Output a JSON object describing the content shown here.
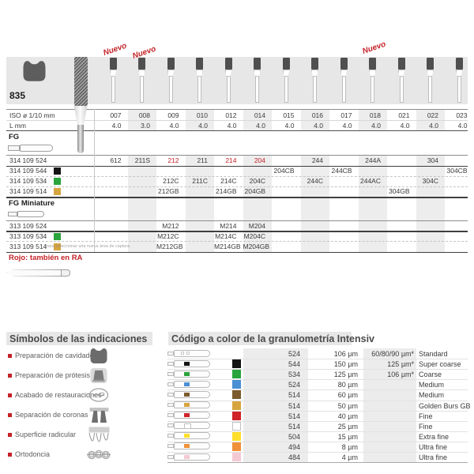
{
  "product": {
    "model": "835",
    "new_label": "Nuevo",
    "new_columns": [
      0,
      1,
      9
    ],
    "columns": [
      "007",
      "008",
      "009",
      "010",
      "012",
      "014",
      "015",
      "016",
      "017",
      "018",
      "021",
      "022",
      "023"
    ],
    "shaded_column_indices": [
      1,
      3,
      5,
      7,
      9,
      11
    ],
    "iso_label": "ISO ø 1/10 mm",
    "l_label": "L mm",
    "l_values": [
      "4.0",
      "3.0",
      "4.0",
      "4.0",
      "4.0",
      "4.0",
      "4.0",
      "4.0",
      "4.0",
      "4.0",
      "4.0",
      "4.0",
      "4.0"
    ],
    "fg": {
      "label": "FG",
      "rows": [
        {
          "code": "314 109 524",
          "square": null,
          "values": [
            "612",
            "211S",
            "212",
            "211",
            "214",
            "204",
            "",
            "244",
            "",
            "244A",
            "",
            "304",
            ""
          ],
          "red": [
            2,
            4,
            5
          ]
        },
        {
          "code": "314 109 544",
          "square": "#141414",
          "values": [
            "",
            "",
            "",
            "",
            "",
            "",
            "204CB",
            "",
            "244CB",
            "",
            "",
            "",
            "304CB"
          ],
          "red": []
        },
        {
          "code": "314 109 534",
          "square": "#2aa43c",
          "values": [
            "",
            "",
            "212C",
            "211C",
            "214C",
            "204C",
            "",
            "244C",
            "",
            "244AC",
            "",
            "304C",
            ""
          ],
          "red": []
        },
        {
          "code": "314 109 514",
          "square": "#d7a53f",
          "values": [
            "",
            "",
            "212GB",
            "",
            "214GB",
            "204GB",
            "",
            "",
            "",
            "",
            "304GB",
            "",
            ""
          ],
          "red": []
        }
      ]
    },
    "fg_miniature": {
      "label": "FG Miniature",
      "rows": [
        {
          "code": "313 109 524",
          "square": null,
          "values": [
            "",
            "",
            "M212",
            "",
            "M214",
            "M204",
            "",
            "",
            "",
            "",
            "",
            "",
            ""
          ],
          "red": []
        },
        {
          "code": "313 109 534",
          "square": "#2aa43c",
          "values": [
            "",
            "",
            "M212C",
            "",
            "M214C",
            "M204C",
            "",
            "",
            "",
            "",
            "",
            "",
            ""
          ],
          "red": []
        },
        {
          "code": "313 109 514",
          "square": "#d7a53f",
          "values": [
            "",
            "",
            "M212GB",
            "",
            "M214GB",
            "M204GB",
            "",
            "",
            "",
            "",
            "",
            "",
            ""
          ],
          "red": []
        }
      ]
    },
    "ra_note": "Rojo: también en RA",
    "accent_color": "#c42227"
  },
  "symbols": {
    "heading": "Símbolos de las indicaciones",
    "items": [
      {
        "label": "Preparación de cavidades",
        "icon": "molar-icon"
      },
      {
        "label": "Preparación de prótesis",
        "icon": "crown-icon"
      },
      {
        "label": "Acabado de restauraciones",
        "icon": "polish-icon"
      },
      {
        "label": "Separación de coronas",
        "icon": "crown-separation-icon"
      },
      {
        "label": "Superficie radicular",
        "icon": "root-surface-icon"
      },
      {
        "label": "Ortodoncia",
        "icon": "braces-icon"
      }
    ]
  },
  "granulometry": {
    "heading": "Código a color de la granulometría Intensiv",
    "rows": [
      {
        "color": null,
        "code": "524",
        "grain": "106 µm",
        "alt": "60/80/90 µm*",
        "name": "Standard"
      },
      {
        "color": "#141414",
        "code": "544",
        "grain": "150 µm",
        "alt": "125 µm*",
        "name": "Super coarse"
      },
      {
        "color": "#2aa43c",
        "code": "534",
        "grain": "125 µm",
        "alt": "106 µm*",
        "name": "Coarse"
      },
      {
        "color": "#4b8fd4",
        "code": "524",
        "grain": "80 µm",
        "alt": "",
        "name": "Medium"
      },
      {
        "color": "#7d5a2e",
        "code": "514",
        "grain": "60 µm",
        "alt": "",
        "name": "Medium"
      },
      {
        "color": "#d7a53f",
        "code": "514",
        "grain": "50 µm",
        "alt": "",
        "name": "Golden Burs GB"
      },
      {
        "color": "#d1232a",
        "code": "514",
        "grain": "40 µm",
        "alt": "",
        "name": "Fine"
      },
      {
        "color": "#ffffff",
        "code": "514",
        "grain": "25 µm",
        "alt": "",
        "name": "Fine"
      },
      {
        "color": "#ffdf2b",
        "code": "504",
        "grain": "15 µm",
        "alt": "",
        "name": "Extra fine"
      },
      {
        "color": "#f0913a",
        "code": "494",
        "grain": "8 µm",
        "alt": "",
        "name": "Ultra fine"
      },
      {
        "color": "#f5c9d4",
        "code": "484",
        "grain": "4 µm",
        "alt": "",
        "name": "Ultra fine"
      }
    ]
  },
  "artifacts": {
    "watermark": "para seleccionar una nueva área de captura"
  }
}
